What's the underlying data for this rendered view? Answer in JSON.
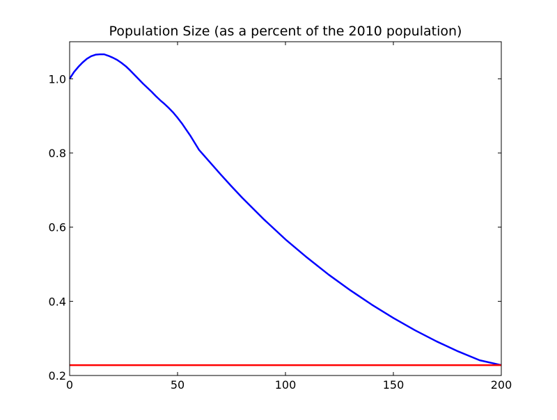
{
  "chart_data": {
    "type": "line",
    "title": "Population Size (as a percent of the 2010 population)",
    "xlabel": "",
    "ylabel": "",
    "xlim": [
      0,
      200
    ],
    "ylim": [
      0.2,
      1.1
    ],
    "x_ticks": [
      0,
      50,
      100,
      150,
      200
    ],
    "x_tick_labels": [
      "0",
      "50",
      "100",
      "150",
      "200"
    ],
    "y_ticks": [
      0.2,
      0.4,
      0.6,
      0.8,
      1.0
    ],
    "y_tick_labels": [
      "0.2",
      "0.4",
      "0.6",
      "0.8",
      "1.0"
    ],
    "grid": false,
    "series": [
      {
        "color": "#0000ff",
        "x": [
          0,
          2,
          4,
          6,
          8,
          10,
          12,
          14,
          16,
          18,
          20,
          22,
          24,
          26,
          28,
          30,
          32,
          34,
          36,
          38,
          40,
          42,
          44,
          46,
          48,
          50,
          52,
          54,
          56,
          58,
          60,
          65,
          70,
          75,
          80,
          90,
          100,
          110,
          120,
          130,
          140,
          150,
          160,
          170,
          180,
          190,
          200
        ],
        "y": [
          1.0,
          1.018,
          1.032,
          1.044,
          1.054,
          1.061,
          1.065,
          1.066,
          1.066,
          1.062,
          1.057,
          1.051,
          1.043,
          1.034,
          1.023,
          1.011,
          0.999,
          0.987,
          0.976,
          0.965,
          0.953,
          0.942,
          0.932,
          0.921,
          0.909,
          0.895,
          0.88,
          0.863,
          0.846,
          0.827,
          0.808,
          0.775,
          0.742,
          0.71,
          0.679,
          0.621,
          0.567,
          0.518,
          0.472,
          0.43,
          0.391,
          0.355,
          0.322,
          0.292,
          0.265,
          0.241,
          0.228
        ]
      },
      {
        "color": "#ff0000",
        "x": [
          0,
          200
        ],
        "y": [
          0.228,
          0.228
        ]
      }
    ]
  }
}
